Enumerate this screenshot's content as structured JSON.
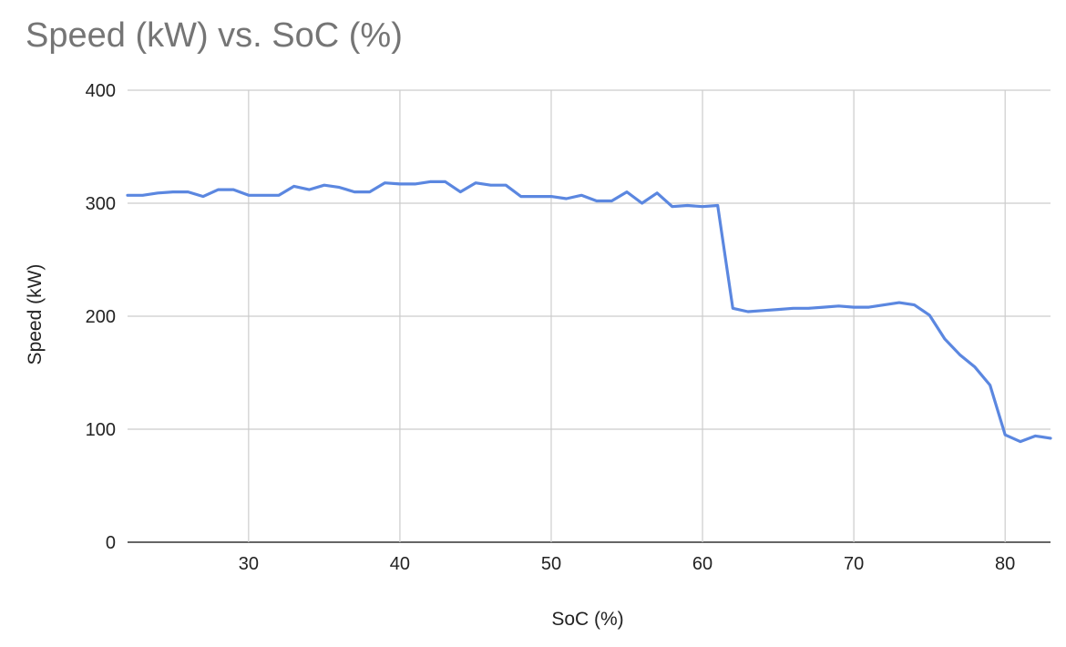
{
  "chart_data": {
    "type": "line",
    "title": "Speed (kW) vs. SoC (%)",
    "xlabel": "SoC (%)",
    "ylabel": "Speed (kW)",
    "xlim": [
      22,
      83
    ],
    "ylim": [
      0,
      400
    ],
    "x_ticks": [
      30,
      40,
      50,
      60,
      70,
      80
    ],
    "y_ticks": [
      0,
      100,
      200,
      300,
      400
    ],
    "grid": true,
    "legend": "none",
    "line_color": "#5b87e0",
    "grid_color": "#cccccc",
    "series": [
      {
        "x": [
          22,
          23,
          24,
          25,
          26,
          27,
          28,
          29,
          30,
          31,
          32,
          33,
          34,
          35,
          36,
          37,
          38,
          39,
          40,
          41,
          42,
          43,
          44,
          45,
          46,
          47,
          48,
          49,
          50,
          51,
          52,
          53,
          54,
          55,
          56,
          57,
          58,
          59,
          60,
          61,
          62,
          63,
          64,
          65,
          66,
          67,
          68,
          69,
          70,
          71,
          72,
          73,
          74,
          75,
          76,
          77,
          78,
          79,
          80,
          81,
          82,
          83
        ],
        "values": [
          307,
          307,
          309,
          310,
          310,
          306,
          312,
          312,
          307,
          307,
          307,
          315,
          312,
          316,
          314,
          310,
          310,
          318,
          317,
          317,
          319,
          319,
          310,
          318,
          316,
          316,
          306,
          306,
          306,
          304,
          307,
          302,
          302,
          310,
          300,
          309,
          297,
          298,
          297,
          298,
          207,
          204,
          205,
          206,
          207,
          207,
          208,
          209,
          208,
          208,
          210,
          212,
          210,
          201,
          180,
          166,
          155,
          139,
          95,
          89,
          94,
          92
        ]
      }
    ]
  }
}
